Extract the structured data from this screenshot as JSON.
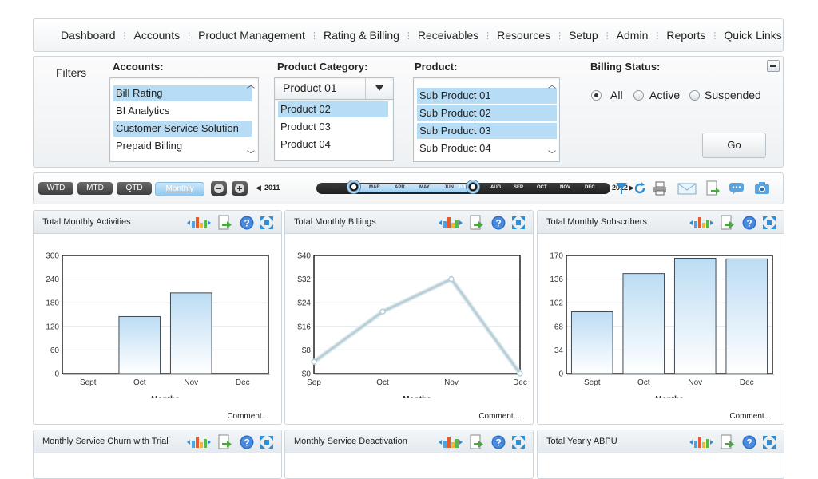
{
  "nav": {
    "items": [
      "Dashboard",
      "Accounts",
      "Product Management",
      "Rating & Billing",
      "Receivables",
      "Resources",
      "Setup",
      "Admin",
      "Reports",
      "Quick Links"
    ]
  },
  "filters": {
    "title": "Filters",
    "accounts": {
      "label": "Accounts:",
      "items": [
        {
          "text": "Bill Rating",
          "selected": true
        },
        {
          "text": "BI Analytics",
          "selected": false
        },
        {
          "text": "Customer Service Solution",
          "selected": true
        },
        {
          "text": "Prepaid Billing",
          "selected": false
        }
      ]
    },
    "product_category": {
      "label": "Product Category:",
      "selected": "Product 01",
      "options": [
        {
          "text": "Product 02",
          "selected": true
        },
        {
          "text": "Product 03",
          "selected": false
        },
        {
          "text": "Product 04",
          "selected": false
        }
      ]
    },
    "product": {
      "label": "Product:",
      "items": [
        {
          "text": "Sub Product 01",
          "selected": true
        },
        {
          "text": "Sub Product 02",
          "selected": true
        },
        {
          "text": "Sub Product 03",
          "selected": true
        },
        {
          "text": "Sub Product 04",
          "selected": false
        }
      ]
    },
    "billing_status": {
      "label": "Billing Status:",
      "options": [
        "All",
        "Active",
        "Suspended"
      ],
      "selected": "All"
    },
    "go_label": "Go",
    "collapse_icon": "minus-icon"
  },
  "timebar": {
    "periods": [
      "WTD",
      "MTD",
      "QTD",
      "Monthly"
    ],
    "active_period": "Monthly",
    "start_year": "2011",
    "end_year": "2012",
    "months": [
      "JAN",
      "MAR",
      "APR",
      "MAY",
      "JUN",
      "JUL",
      "AUG",
      "SEP",
      "OCT",
      "NOV",
      "DEC"
    ],
    "tools": [
      "filter-icon",
      "refresh-icon",
      "print-icon",
      "email-icon",
      "export-icon",
      "chat-icon",
      "camera-icon"
    ]
  },
  "panels": [
    {
      "title": "Total Monthly Activities",
      "comment": "Comment..."
    },
    {
      "title": "Total Monthly Billings",
      "comment": "Comment..."
    },
    {
      "title": "Total Monthly Subscribers",
      "comment": "Comment..."
    },
    {
      "title": "Monthly Service Churn with Trial"
    },
    {
      "title": "Monthly Service Deactivation"
    },
    {
      "title": "Total Yearly ABPU"
    }
  ],
  "chart_data": [
    {
      "type": "bar",
      "title": "Total Monthly Activities",
      "xlabel": "Months",
      "ylabel": "",
      "categories": [
        "Sept",
        "Oct",
        "Nov",
        "Dec"
      ],
      "values": [
        0,
        145,
        205,
        0
      ],
      "yticks": [
        "0",
        "60",
        "120",
        "180",
        "240",
        "300"
      ],
      "ylim": [
        0,
        300
      ],
      "grid": true
    },
    {
      "type": "line",
      "title": "Total Monthly Billings",
      "xlabel": "Months",
      "ylabel": "",
      "categories": [
        "Sep",
        "Oct",
        "Nov",
        "Dec"
      ],
      "values": [
        4,
        21,
        32,
        0
      ],
      "yticks": [
        "$0",
        "$8",
        "$16",
        "$24",
        "$32",
        "$40"
      ],
      "ylim": [
        0,
        40
      ],
      "grid": true
    },
    {
      "type": "bar",
      "title": "Total Monthly Subscribers",
      "xlabel": "Months",
      "ylabel": "",
      "categories": [
        "Sept",
        "Oct",
        "Nov",
        "Dec"
      ],
      "values": [
        89,
        144,
        166,
        165
      ],
      "yticks": [
        "0",
        "34",
        "68",
        "102",
        "136",
        "170"
      ],
      "ylim": [
        0,
        170
      ],
      "grid": true
    }
  ],
  "colors": {
    "selection": "#b7dcf5",
    "bar_fill_top": "#bcdcf4",
    "line": "#b9cfd8"
  }
}
